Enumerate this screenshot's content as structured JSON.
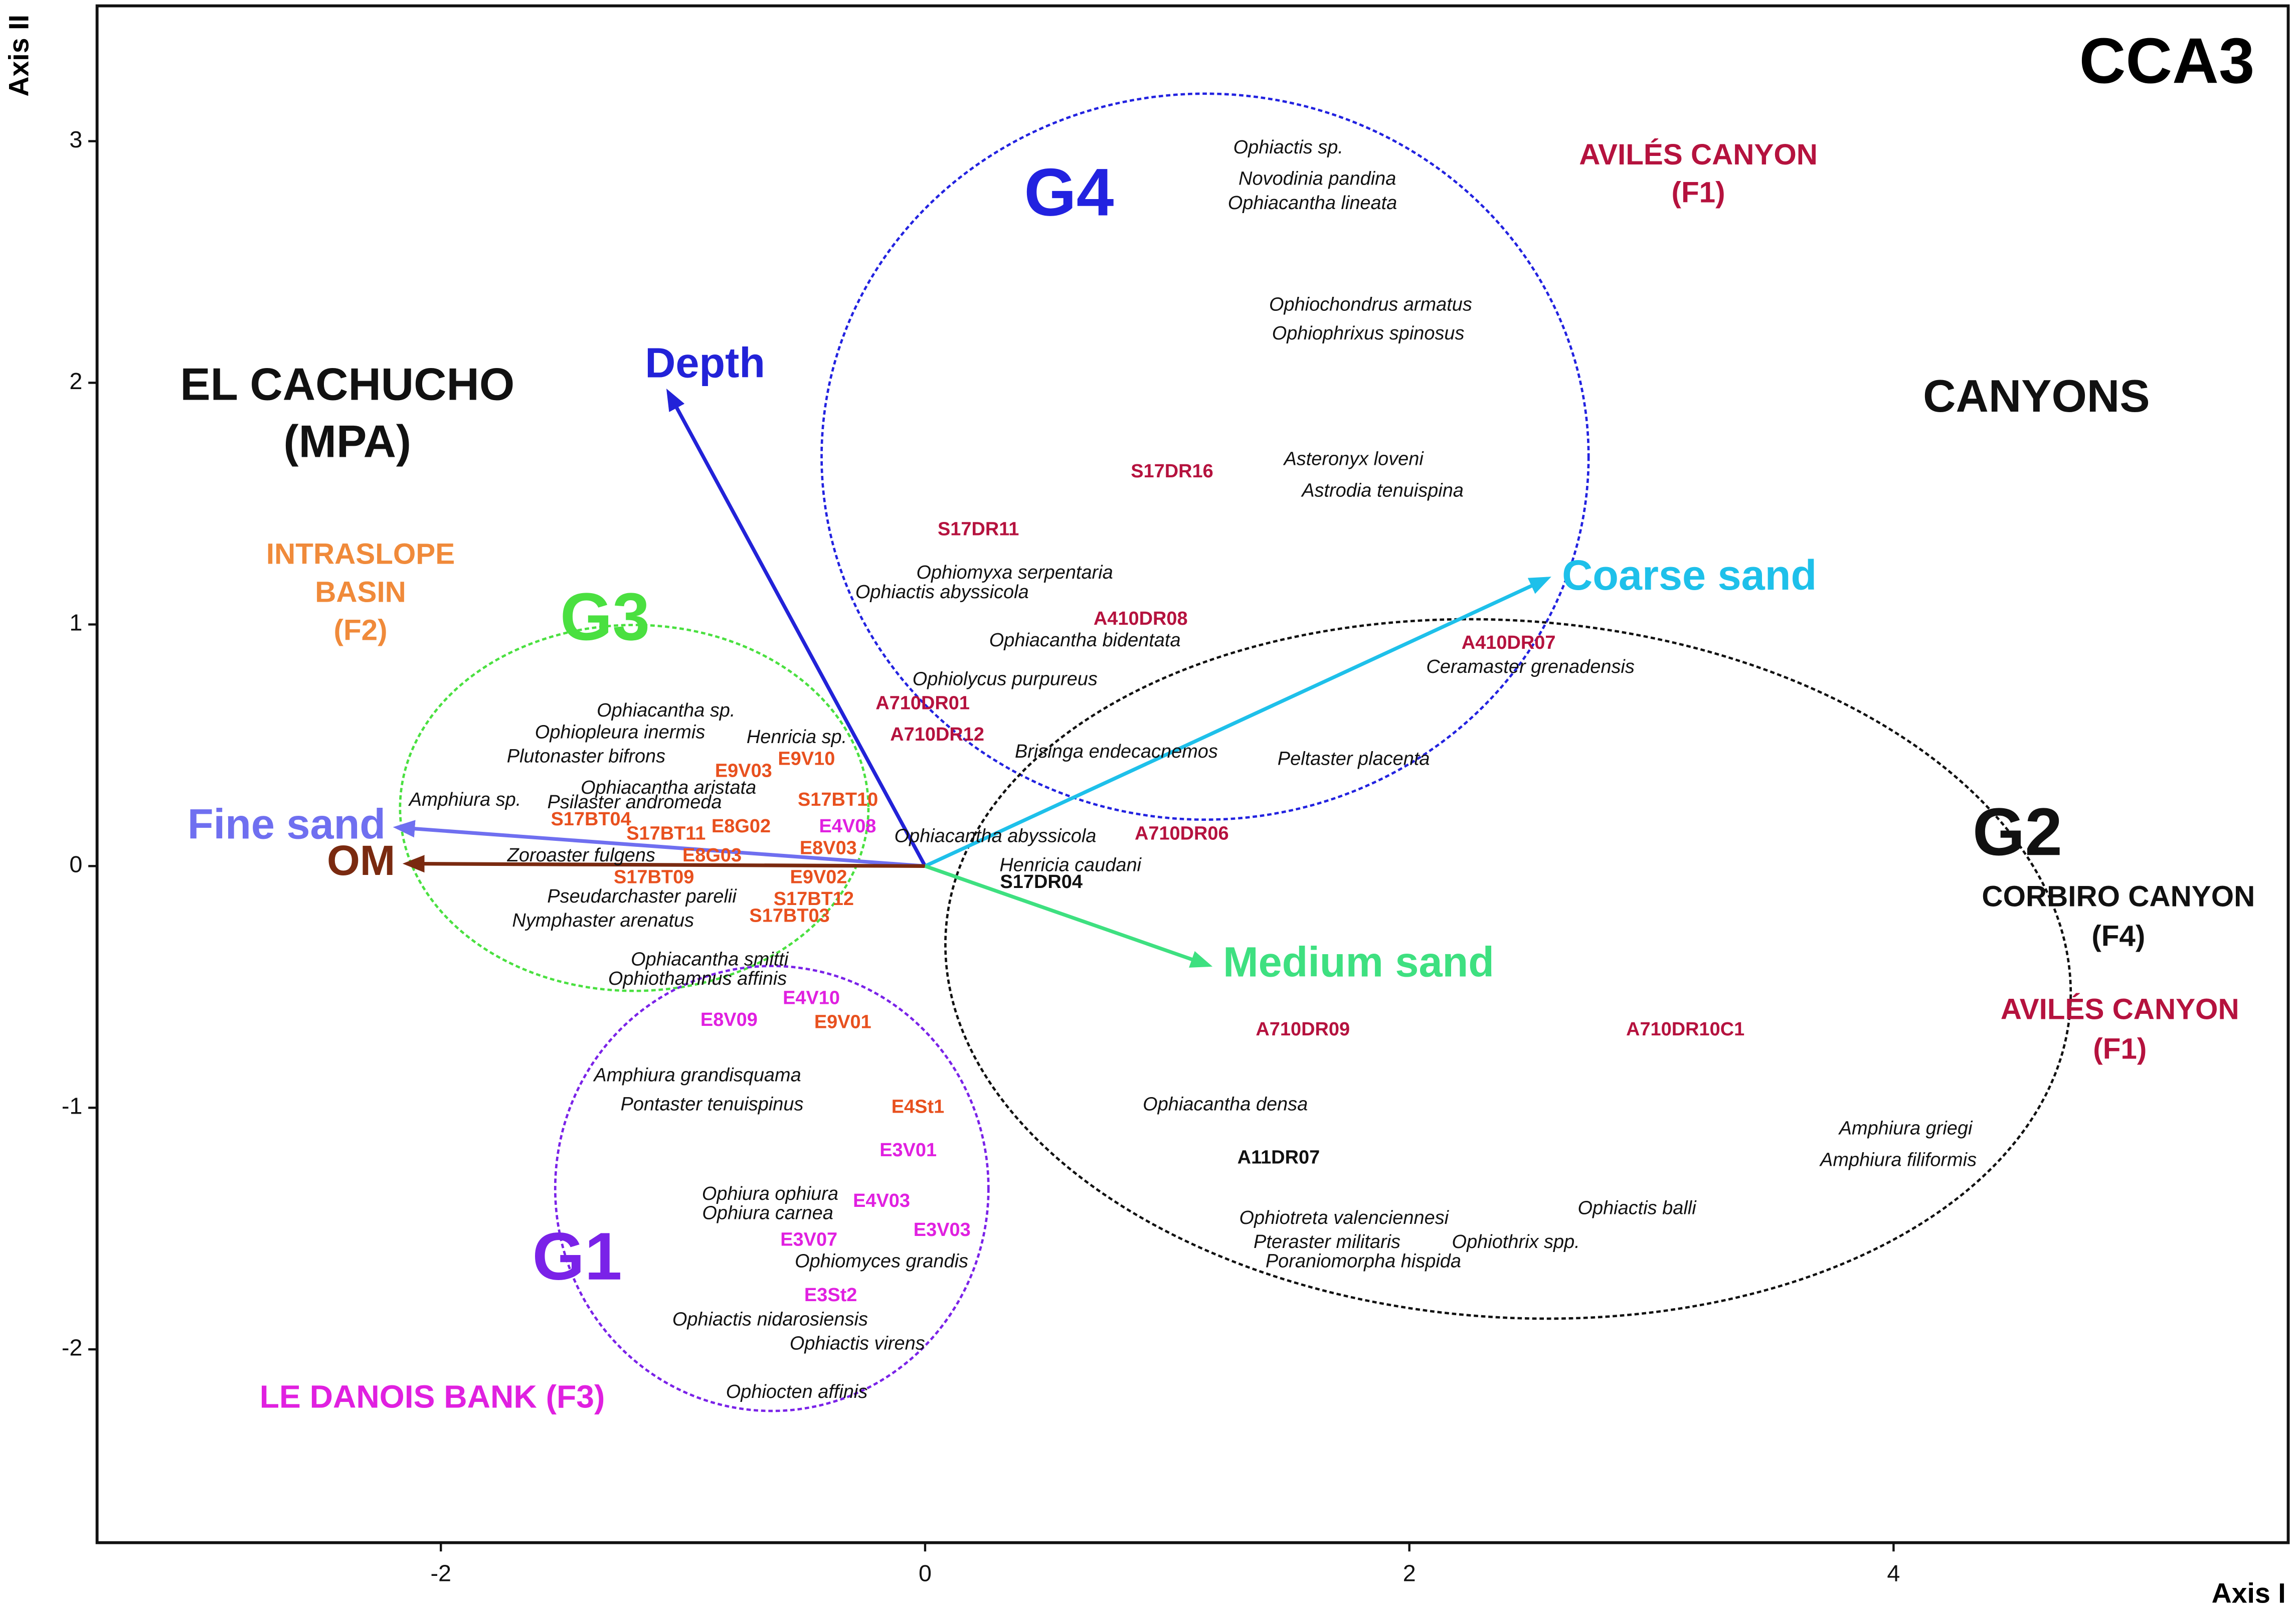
{
  "chart_data": {
    "type": "biplot",
    "title": "CCA3",
    "x_label": "Axis I",
    "y_label": "Axis II",
    "xlim": [
      -3.42,
      5.63
    ],
    "ylim": [
      -2.8,
      3.56
    ],
    "xticks": [
      -2,
      0,
      2,
      4
    ],
    "yticks": [
      -2,
      -1,
      0,
      1,
      2,
      3
    ],
    "species": [
      {
        "name": "Ophiactis sp.",
        "x": 1.5,
        "y": 2.97
      },
      {
        "name": "Novodinia pandina",
        "x": 1.62,
        "y": 2.84
      },
      {
        "name": "Ophiacantha lineata",
        "x": 1.6,
        "y": 2.74
      },
      {
        "name": "Ophiochondrus armatus",
        "x": 1.84,
        "y": 2.32
      },
      {
        "name": "Ophiophrixus spinosus",
        "x": 1.83,
        "y": 2.2
      },
      {
        "name": "Asteronyx loveni",
        "x": 1.77,
        "y": 1.68
      },
      {
        "name": "Astrodia tenuispina",
        "x": 1.89,
        "y": 1.55
      },
      {
        "name": "Ophiomyxa serpentaria",
        "x": 0.37,
        "y": 1.21
      },
      {
        "name": "Ophiactis abyssicola",
        "x": 0.07,
        "y": 1.13
      },
      {
        "name": "Ophiacantha bidentata",
        "x": 0.66,
        "y": 0.93
      },
      {
        "name": "Ophiolycus purpureus",
        "x": 0.33,
        "y": 0.77
      },
      {
        "name": "Brisinga endecacnemos",
        "x": 0.79,
        "y": 0.47
      },
      {
        "name": "Peltaster placenta",
        "x": 1.77,
        "y": 0.44
      },
      {
        "name": "Ceramaster grenadensis",
        "x": 2.5,
        "y": 0.82
      },
      {
        "name": "Ophiacantha sp.",
        "x": -1.07,
        "y": 0.64
      },
      {
        "name": "Ophiopleura inermis",
        "x": -1.26,
        "y": 0.55
      },
      {
        "name": "Plutonaster bifrons",
        "x": -1.4,
        "y": 0.45
      },
      {
        "name": "Henricia sp.",
        "x": -0.53,
        "y": 0.53
      },
      {
        "name": "Ophiacantha aristata",
        "x": -1.06,
        "y": 0.32
      },
      {
        "name": "Amphiura sp.",
        "x": -1.9,
        "y": 0.27
      },
      {
        "name": "Psilaster andromeda",
        "x": -1.2,
        "y": 0.26
      },
      {
        "name": "Zoroaster fulgens",
        "x": -1.42,
        "y": 0.04
      },
      {
        "name": "Pseudarchaster parelii",
        "x": -1.17,
        "y": -0.13
      },
      {
        "name": "Nymphaster arenatus",
        "x": -1.33,
        "y": -0.23
      },
      {
        "name": "Ophiacantha abyssicola",
        "x": 0.29,
        "y": 0.12
      },
      {
        "name": "Henricia caudani",
        "x": 0.6,
        "y": 0.0
      },
      {
        "name": "Ophiacantha smitti",
        "x": -0.89,
        "y": -0.39
      },
      {
        "name": "Ophiothamnus affinis",
        "x": -0.94,
        "y": -0.47
      },
      {
        "name": "Amphiura grandisquama",
        "x": -0.94,
        "y": -0.87
      },
      {
        "name": "Pontaster tenuispinus",
        "x": -0.88,
        "y": -0.99
      },
      {
        "name": "Ophiacantha densa",
        "x": 1.24,
        "y": -0.99
      },
      {
        "name": "Ophiura ophiura",
        "x": -0.64,
        "y": -1.36
      },
      {
        "name": "Ophiura carnea",
        "x": -0.65,
        "y": -1.44
      },
      {
        "name": "Ophiomyces grandis",
        "x": -0.18,
        "y": -1.64
      },
      {
        "name": "Ophiactis nidarosiensis",
        "x": -0.64,
        "y": -1.88
      },
      {
        "name": "Ophiactis virens",
        "x": -0.28,
        "y": -1.98
      },
      {
        "name": "Ophiocten affinis",
        "x": -0.53,
        "y": -2.18
      },
      {
        "name": "Ophiotreta valenciennesi",
        "x": 1.73,
        "y": -1.46
      },
      {
        "name": "Pteraster militaris",
        "x": 1.66,
        "y": -1.56
      },
      {
        "name": "Poraniomorpha hispida",
        "x": 1.81,
        "y": -1.64
      },
      {
        "name": "Ophiothrix spp.",
        "x": 2.44,
        "y": -1.56
      },
      {
        "name": "Ophiactis balli",
        "x": 2.94,
        "y": -1.42
      },
      {
        "name": "Amphiura griegi",
        "x": 4.05,
        "y": -1.09
      },
      {
        "name": "Amphiura filiformis",
        "x": 4.02,
        "y": -1.22
      }
    ],
    "samples": [
      {
        "name": "S17DR16",
        "x": 1.02,
        "y": 1.63,
        "color": "#b5123e"
      },
      {
        "name": "S17DR11",
        "x": 0.22,
        "y": 1.39,
        "color": "#b5123e"
      },
      {
        "name": "A410DR08",
        "x": 0.89,
        "y": 1.02,
        "color": "#b5123e"
      },
      {
        "name": "A410DR07",
        "x": 2.41,
        "y": 0.92,
        "color": "#b5123e"
      },
      {
        "name": "A710DR01",
        "x": -0.01,
        "y": 0.67,
        "color": "#b5123e"
      },
      {
        "name": "A710DR12",
        "x": 0.05,
        "y": 0.54,
        "color": "#b5123e"
      },
      {
        "name": "A710DR06",
        "x": 1.06,
        "y": 0.13,
        "color": "#b5123e"
      },
      {
        "name": "S17DR04",
        "x": 0.48,
        "y": -0.07,
        "color": "#111111"
      },
      {
        "name": "A710DR09",
        "x": 1.56,
        "y": -0.68,
        "color": "#b5123e"
      },
      {
        "name": "A710DR10C1",
        "x": 3.14,
        "y": -0.68,
        "color": "#b5123e"
      },
      {
        "name": "A11DR07",
        "x": 1.46,
        "y": -1.21,
        "color": "#111111"
      },
      {
        "name": "E9V03",
        "x": -0.75,
        "y": 0.39,
        "color": "#e8501e"
      },
      {
        "name": "E9V10",
        "x": -0.49,
        "y": 0.44,
        "color": "#e8501e"
      },
      {
        "name": "S17BT10",
        "x": -0.36,
        "y": 0.27,
        "color": "#e8501e"
      },
      {
        "name": "S17BT04",
        "x": -1.38,
        "y": 0.19,
        "color": "#e8501e"
      },
      {
        "name": "S17BT11",
        "x": -1.07,
        "y": 0.13,
        "color": "#e8501e"
      },
      {
        "name": "E8G02",
        "x": -0.76,
        "y": 0.16,
        "color": "#e8501e"
      },
      {
        "name": "E8V03",
        "x": -0.4,
        "y": 0.07,
        "color": "#e8501e"
      },
      {
        "name": "E8G03",
        "x": -0.88,
        "y": 0.04,
        "color": "#e8501e"
      },
      {
        "name": "S17BT09",
        "x": -1.12,
        "y": -0.05,
        "color": "#e8501e"
      },
      {
        "name": "E9V02",
        "x": -0.44,
        "y": -0.05,
        "color": "#e8501e"
      },
      {
        "name": "S17BT12",
        "x": -0.46,
        "y": -0.14,
        "color": "#e8501e"
      },
      {
        "name": "S17BT03",
        "x": -0.56,
        "y": -0.21,
        "color": "#e8501e"
      },
      {
        "name": "E9V01",
        "x": -0.34,
        "y": -0.65,
        "color": "#e8501e"
      },
      {
        "name": "E4St1",
        "x": -0.03,
        "y": -1.0,
        "color": "#e8501e"
      },
      {
        "name": "E4V08",
        "x": -0.32,
        "y": 0.16,
        "color": "#e020e0"
      },
      {
        "name": "E4V10",
        "x": -0.47,
        "y": -0.55,
        "color": "#e020e0"
      },
      {
        "name": "E8V09",
        "x": -0.81,
        "y": -0.64,
        "color": "#e020e0"
      },
      {
        "name": "E3V01",
        "x": -0.07,
        "y": -1.18,
        "color": "#e020e0"
      },
      {
        "name": "E4V03",
        "x": -0.18,
        "y": -1.39,
        "color": "#e020e0"
      },
      {
        "name": "E3V03",
        "x": 0.07,
        "y": -1.51,
        "color": "#e020e0"
      },
      {
        "name": "E3V07",
        "x": -0.48,
        "y": -1.55,
        "color": "#e020e0"
      },
      {
        "name": "E3St2",
        "x": -0.39,
        "y": -1.78,
        "color": "#e020e0"
      }
    ],
    "vectors": [
      {
        "name": "Depth",
        "x": -1.06,
        "y": 1.96,
        "color": "#2222d8"
      },
      {
        "name": "Coarse sand",
        "x": 2.57,
        "y": 1.19,
        "color": "#1ec0ea"
      },
      {
        "name": "Fine sand",
        "x": -2.18,
        "y": 0.16,
        "color": "#6f6ff0"
      },
      {
        "name": "OM",
        "x": -2.14,
        "y": 0.01,
        "color": "#7a2a10"
      },
      {
        "name": "Medium sand",
        "x": 1.17,
        "y": -0.41,
        "color": "#3ee080"
      }
    ],
    "groups": [
      {
        "name": "G4",
        "color": "#2222e0"
      },
      {
        "name": "G3",
        "color": "#4ae040"
      },
      {
        "name": "G1",
        "color": "#7a22e8"
      },
      {
        "name": "G2",
        "color": "#111111"
      }
    ],
    "annotations": [
      {
        "lines": [
          "AVILÉS CANYON",
          "(F1)"
        ],
        "color": "#b5123e"
      },
      {
        "lines": [
          "EL CACHUCHO",
          "(MPA)"
        ],
        "color": "#111111"
      },
      {
        "lines": [
          "CANYONS"
        ],
        "color": "#111111"
      },
      {
        "lines": [
          "INTRASLOPE",
          "BASIN",
          "(F2)"
        ],
        "color": "#f08a3a"
      },
      {
        "lines": [
          "CORBIRO CANYON",
          "(F4)"
        ],
        "color": "#111111"
      },
      {
        "lines": [
          "AVILÉS CANYON",
          "(F1)"
        ],
        "color": "#b5123e"
      },
      {
        "lines": [
          "LE DANOIS BANK (F3)"
        ],
        "color": "#e020e0"
      }
    ]
  }
}
